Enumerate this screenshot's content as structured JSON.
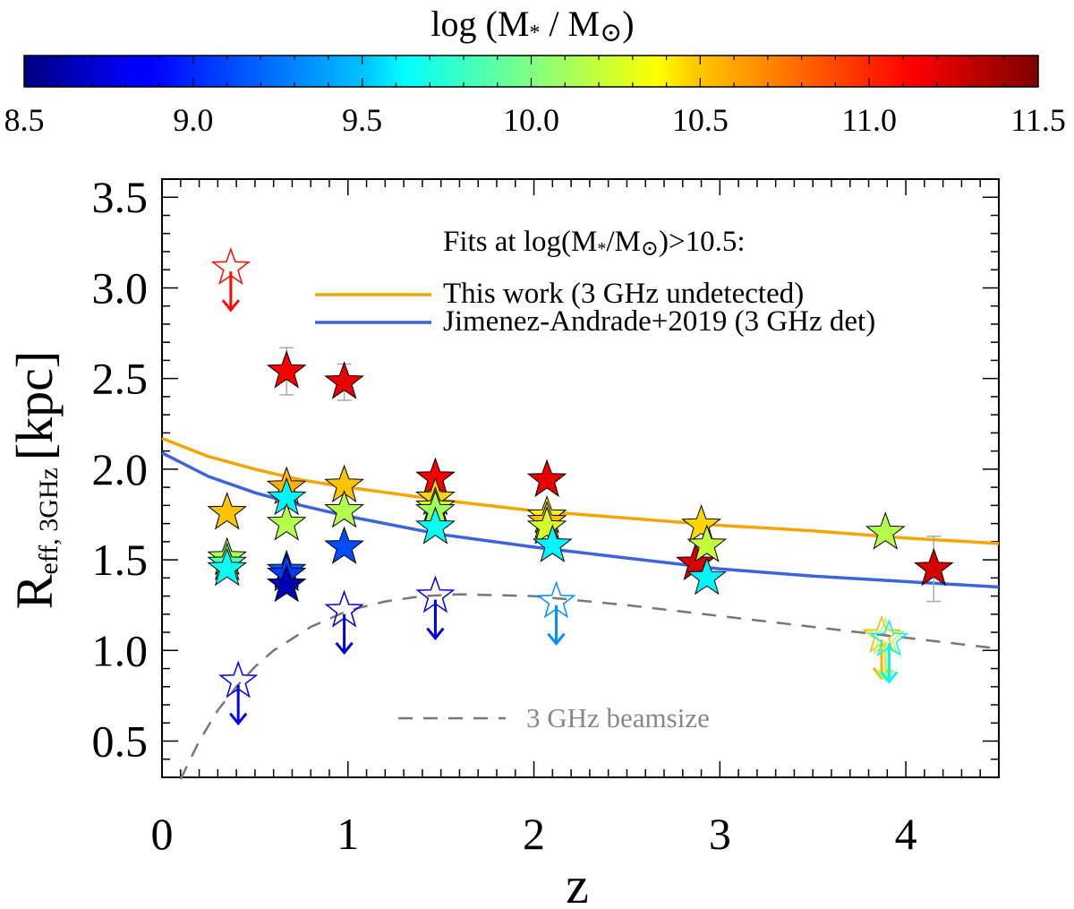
{
  "chart_data": {
    "type": "scatter",
    "title": "",
    "xlabel": "z",
    "ylabel": "R_eff, 3GHz [kpc]",
    "ylabel_main": "R",
    "ylabel_sub": "eff, 3GHz",
    "ylabel_units": "[kpc]",
    "xlim": [
      0,
      4.5
    ],
    "ylim": [
      0.3,
      3.6
    ],
    "xticks": [
      0,
      1,
      2,
      3,
      4
    ],
    "xtick_labels": [
      "0",
      "1",
      "2",
      "3",
      "4"
    ],
    "yticks": [
      0.5,
      1.0,
      1.5,
      2.0,
      2.5,
      3.0,
      3.5
    ],
    "ytick_labels": [
      "0.5",
      "1.0",
      "1.5",
      "2.0",
      "2.5",
      "3.0",
      "3.5"
    ],
    "colorbar": {
      "label": "log (M* / M⊙)",
      "label_parts": [
        "log (M",
        "*",
        " / M",
        "⊙",
        ")"
      ],
      "range": [
        8.5,
        11.5
      ],
      "ticks": [
        8.5,
        9.0,
        9.5,
        10.0,
        10.5,
        11.0,
        11.5
      ],
      "tick_labels": [
        "8.5",
        "9.0",
        "9.5",
        "10.0",
        "10.5",
        "11.0",
        "11.5"
      ],
      "colormap": "jet"
    },
    "legend": {
      "title": "Fits at log(M*/M⊙)>10.5:",
      "title_parts": [
        "Fits at log(M",
        "*",
        "/M",
        "⊙",
        ")>10.5:"
      ],
      "placement": "top-right",
      "entries": [
        {
          "label": "This work (3 GHz undetected)",
          "color": "#f5a500"
        },
        {
          "label": "Jimenez-Andrade+2019 (3 GHz det)",
          "color": "#3c64dc"
        }
      ]
    },
    "beam_label": "3 GHz beamsize",
    "beam_color": "#777777",
    "series": [
      {
        "name": "Fits at log(M*/M⊙)>10.5: This work (3 GHz undetected)",
        "color": "#f5a500",
        "x": [
          0.0,
          0.25,
          0.5,
          0.75,
          1.0,
          1.5,
          2.0,
          2.5,
          3.0,
          3.5,
          4.0,
          4.5
        ],
        "y": [
          2.17,
          2.07,
          2.0,
          1.94,
          1.9,
          1.83,
          1.77,
          1.73,
          1.69,
          1.66,
          1.62,
          1.59
        ]
      },
      {
        "name": "Jimenez-Andrade+2019 (3 GHz det)",
        "color": "#3c64dc",
        "x": [
          0.0,
          0.25,
          0.5,
          0.75,
          1.0,
          1.5,
          2.0,
          2.5,
          3.0,
          3.5,
          4.0,
          4.5
        ],
        "y": [
          2.09,
          1.96,
          1.87,
          1.8,
          1.74,
          1.64,
          1.57,
          1.51,
          1.45,
          1.41,
          1.38,
          1.35
        ]
      },
      {
        "name": "3 GHz beamsize",
        "style": "dashed",
        "color": "#777777",
        "x": [
          0.1,
          0.2,
          0.3,
          0.4,
          0.5,
          0.6,
          0.8,
          1.0,
          1.2,
          1.4,
          1.6,
          2.0,
          2.5,
          3.0,
          3.5,
          4.0,
          4.5
        ],
        "y": [
          0.29,
          0.5,
          0.67,
          0.8,
          0.91,
          1.0,
          1.13,
          1.22,
          1.27,
          1.3,
          1.31,
          1.3,
          1.25,
          1.19,
          1.13,
          1.07,
          1.01
        ]
      }
    ],
    "detections": [
      {
        "z": 0.35,
        "r": 1.76,
        "logm": 10.55
      },
      {
        "z": 0.35,
        "r": 1.51,
        "logm": 10.15
      },
      {
        "z": 0.35,
        "r": 1.48,
        "logm": 9.85
      },
      {
        "z": 0.35,
        "r": 1.45,
        "logm": 9.65
      },
      {
        "z": 0.67,
        "r": 2.54,
        "logm": 11.15,
        "err": 0.13
      },
      {
        "z": 0.67,
        "r": 1.9,
        "logm": 10.6
      },
      {
        "z": 0.67,
        "r": 1.84,
        "logm": 9.6
      },
      {
        "z": 0.67,
        "r": 1.7,
        "logm": 10.15
      },
      {
        "z": 0.67,
        "r": 1.44,
        "logm": 9.15
      },
      {
        "z": 0.67,
        "r": 1.42,
        "logm": 9.05
      },
      {
        "z": 0.67,
        "r": 1.36,
        "logm": 8.65
      },
      {
        "z": 0.98,
        "r": 2.48,
        "logm": 11.2,
        "err": 0.1
      },
      {
        "z": 0.98,
        "r": 1.91,
        "logm": 10.55
      },
      {
        "z": 0.98,
        "r": 1.77,
        "logm": 10.15
      },
      {
        "z": 0.98,
        "r": 1.57,
        "logm": 9.1
      },
      {
        "z": 1.47,
        "r": 1.95,
        "logm": 11.15
      },
      {
        "z": 1.47,
        "r": 1.84,
        "logm": 10.5
      },
      {
        "z": 1.47,
        "r": 1.79,
        "logm": 10.3
      },
      {
        "z": 1.47,
        "r": 1.77,
        "logm": 10.1
      },
      {
        "z": 1.47,
        "r": 1.68,
        "logm": 9.65
      },
      {
        "z": 2.07,
        "r": 1.94,
        "logm": 11.2
      },
      {
        "z": 2.07,
        "r": 1.74,
        "logm": 10.4
      },
      {
        "z": 2.07,
        "r": 1.71,
        "logm": 10.55
      },
      {
        "z": 2.07,
        "r": 1.68,
        "logm": 10.25
      },
      {
        "z": 2.1,
        "r": 1.58,
        "logm": 9.6
      },
      {
        "z": 2.87,
        "r": 1.48,
        "logm": 11.25
      },
      {
        "z": 2.9,
        "r": 1.69,
        "logm": 10.5
      },
      {
        "z": 2.93,
        "r": 1.58,
        "logm": 10.2
      },
      {
        "z": 2.93,
        "r": 1.4,
        "logm": 9.6
      },
      {
        "z": 3.89,
        "r": 1.65,
        "logm": 10.15
      },
      {
        "z": 4.15,
        "r": 1.45,
        "logm": 11.25,
        "err": 0.18
      }
    ],
    "upper_limits": [
      {
        "z": 0.37,
        "r": 3.11,
        "logm": 11.1
      },
      {
        "z": 0.41,
        "r": 0.83,
        "logm": 8.85
      },
      {
        "z": 0.98,
        "r": 1.22,
        "logm": 8.75
      },
      {
        "z": 1.47,
        "r": 1.3,
        "logm": 8.8
      },
      {
        "z": 2.12,
        "r": 1.27,
        "logm": 9.3
      },
      {
        "z": 3.87,
        "r": 1.08,
        "logm": 10.6
      },
      {
        "z": 3.89,
        "r": 1.07,
        "logm": 10.15
      },
      {
        "z": 3.91,
        "r": 1.06,
        "logm": 9.6
      }
    ]
  }
}
